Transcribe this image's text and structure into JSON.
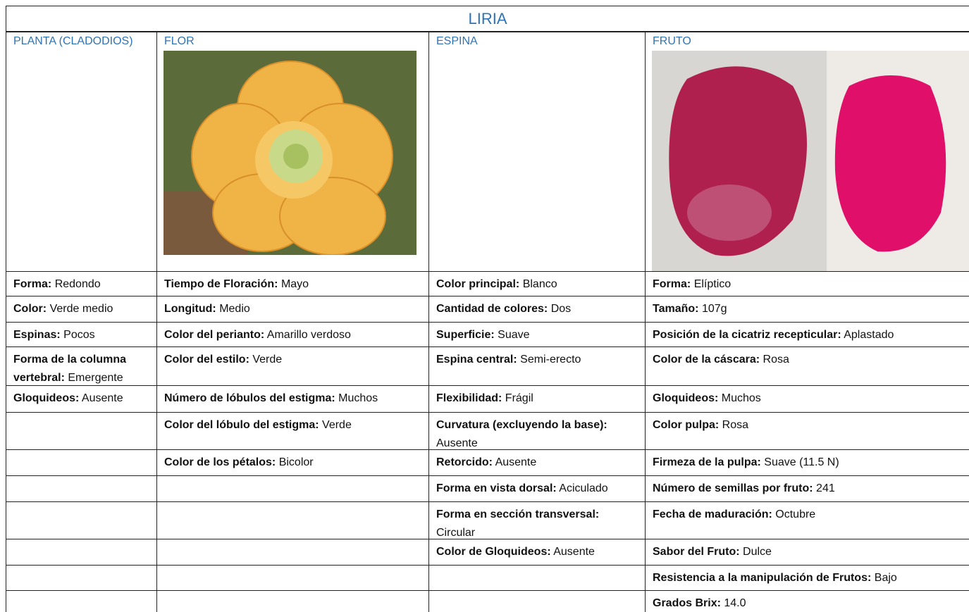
{
  "title": "LIRIA",
  "table": {
    "headers": [
      "PLANTA (CLADODIOS)",
      "FLOR",
      "ESPINA",
      "FRUTO"
    ],
    "rows": [
      [
        {
          "label": "Forma:",
          "value": "Redondo"
        },
        {
          "label": "Tiempo de Floración:",
          "value": "Mayo"
        },
        {
          "label": "Color principal:",
          "value": "Blanco"
        },
        {
          "label": "Forma:",
          "value": "Elíptico"
        }
      ],
      [
        {
          "label": "Color:",
          "value": "Verde medio"
        },
        {
          "label": "Longitud:",
          "value": "Medio"
        },
        {
          "label": "Cantidad de colores:",
          "value": "Dos"
        },
        {
          "label": "Tamaño:",
          "value": "107g"
        }
      ],
      [
        {
          "label": "Espinas:",
          "value": "Pocos"
        },
        {
          "label": "Color del perianto:",
          "value": "Amarillo verdoso"
        },
        {
          "label": "Superficie:",
          "value": "Suave"
        },
        {
          "label": "Posición de la cicatriz recepticular:",
          "value": "Aplastado"
        }
      ],
      [
        {
          "label": "Forma de la columna vertebral:",
          "value": "Emergente"
        },
        {
          "label": "Color del estilo:",
          "value": "Verde"
        },
        {
          "label": "Espina central:",
          "value": "Semi-erecto"
        },
        {
          "label": "Color de la cáscara:",
          "value": "Rosa"
        }
      ],
      [
        {
          "label": "Gloquideos:",
          "value": "Ausente"
        },
        {
          "label": "Número de lóbulos del estigma:",
          "value": "Muchos"
        },
        {
          "label": "Flexibilidad:",
          "value": "Frágil"
        },
        {
          "label": "Gloquideos:",
          "value": "Muchos"
        }
      ],
      [
        null,
        {
          "label": "Color del lóbulo del estigma:",
          "value": "Verde"
        },
        {
          "label": "Curvatura (excluyendo la base):",
          "value": "Ausente"
        },
        {
          "label": "Color pulpa:",
          "value": "Rosa"
        }
      ],
      [
        null,
        {
          "label": "Color de los pétalos:",
          "value": "Bicolor"
        },
        {
          "label": "Retorcido:",
          "value": "Ausente"
        },
        {
          "label": "Firmeza de la pulpa:",
          "value": "Suave (11.5 N)"
        }
      ],
      [
        null,
        null,
        {
          "label": "Forma en vista dorsal:",
          "value": "Aciculado"
        },
        {
          "label": "Número de semillas por fruto:",
          "value": "241"
        }
      ],
      [
        null,
        null,
        {
          "label": "Forma en sección transversal:",
          "value": "Circular"
        },
        {
          "label": "Fecha de maduración:",
          "value": "Octubre"
        }
      ],
      [
        null,
        null,
        {
          "label": "Color de Gloquideos:",
          "value": "Ausente"
        },
        {
          "label": "Sabor del Fruto:",
          "value": "Dulce"
        }
      ],
      [
        null,
        null,
        null,
        {
          "label": "Resistencia a la manipulación de Frutos:",
          "value": "Bajo"
        }
      ],
      [
        null,
        null,
        null,
        {
          "label": "Grados Brix:",
          "value": "14.0"
        }
      ]
    ]
  }
}
